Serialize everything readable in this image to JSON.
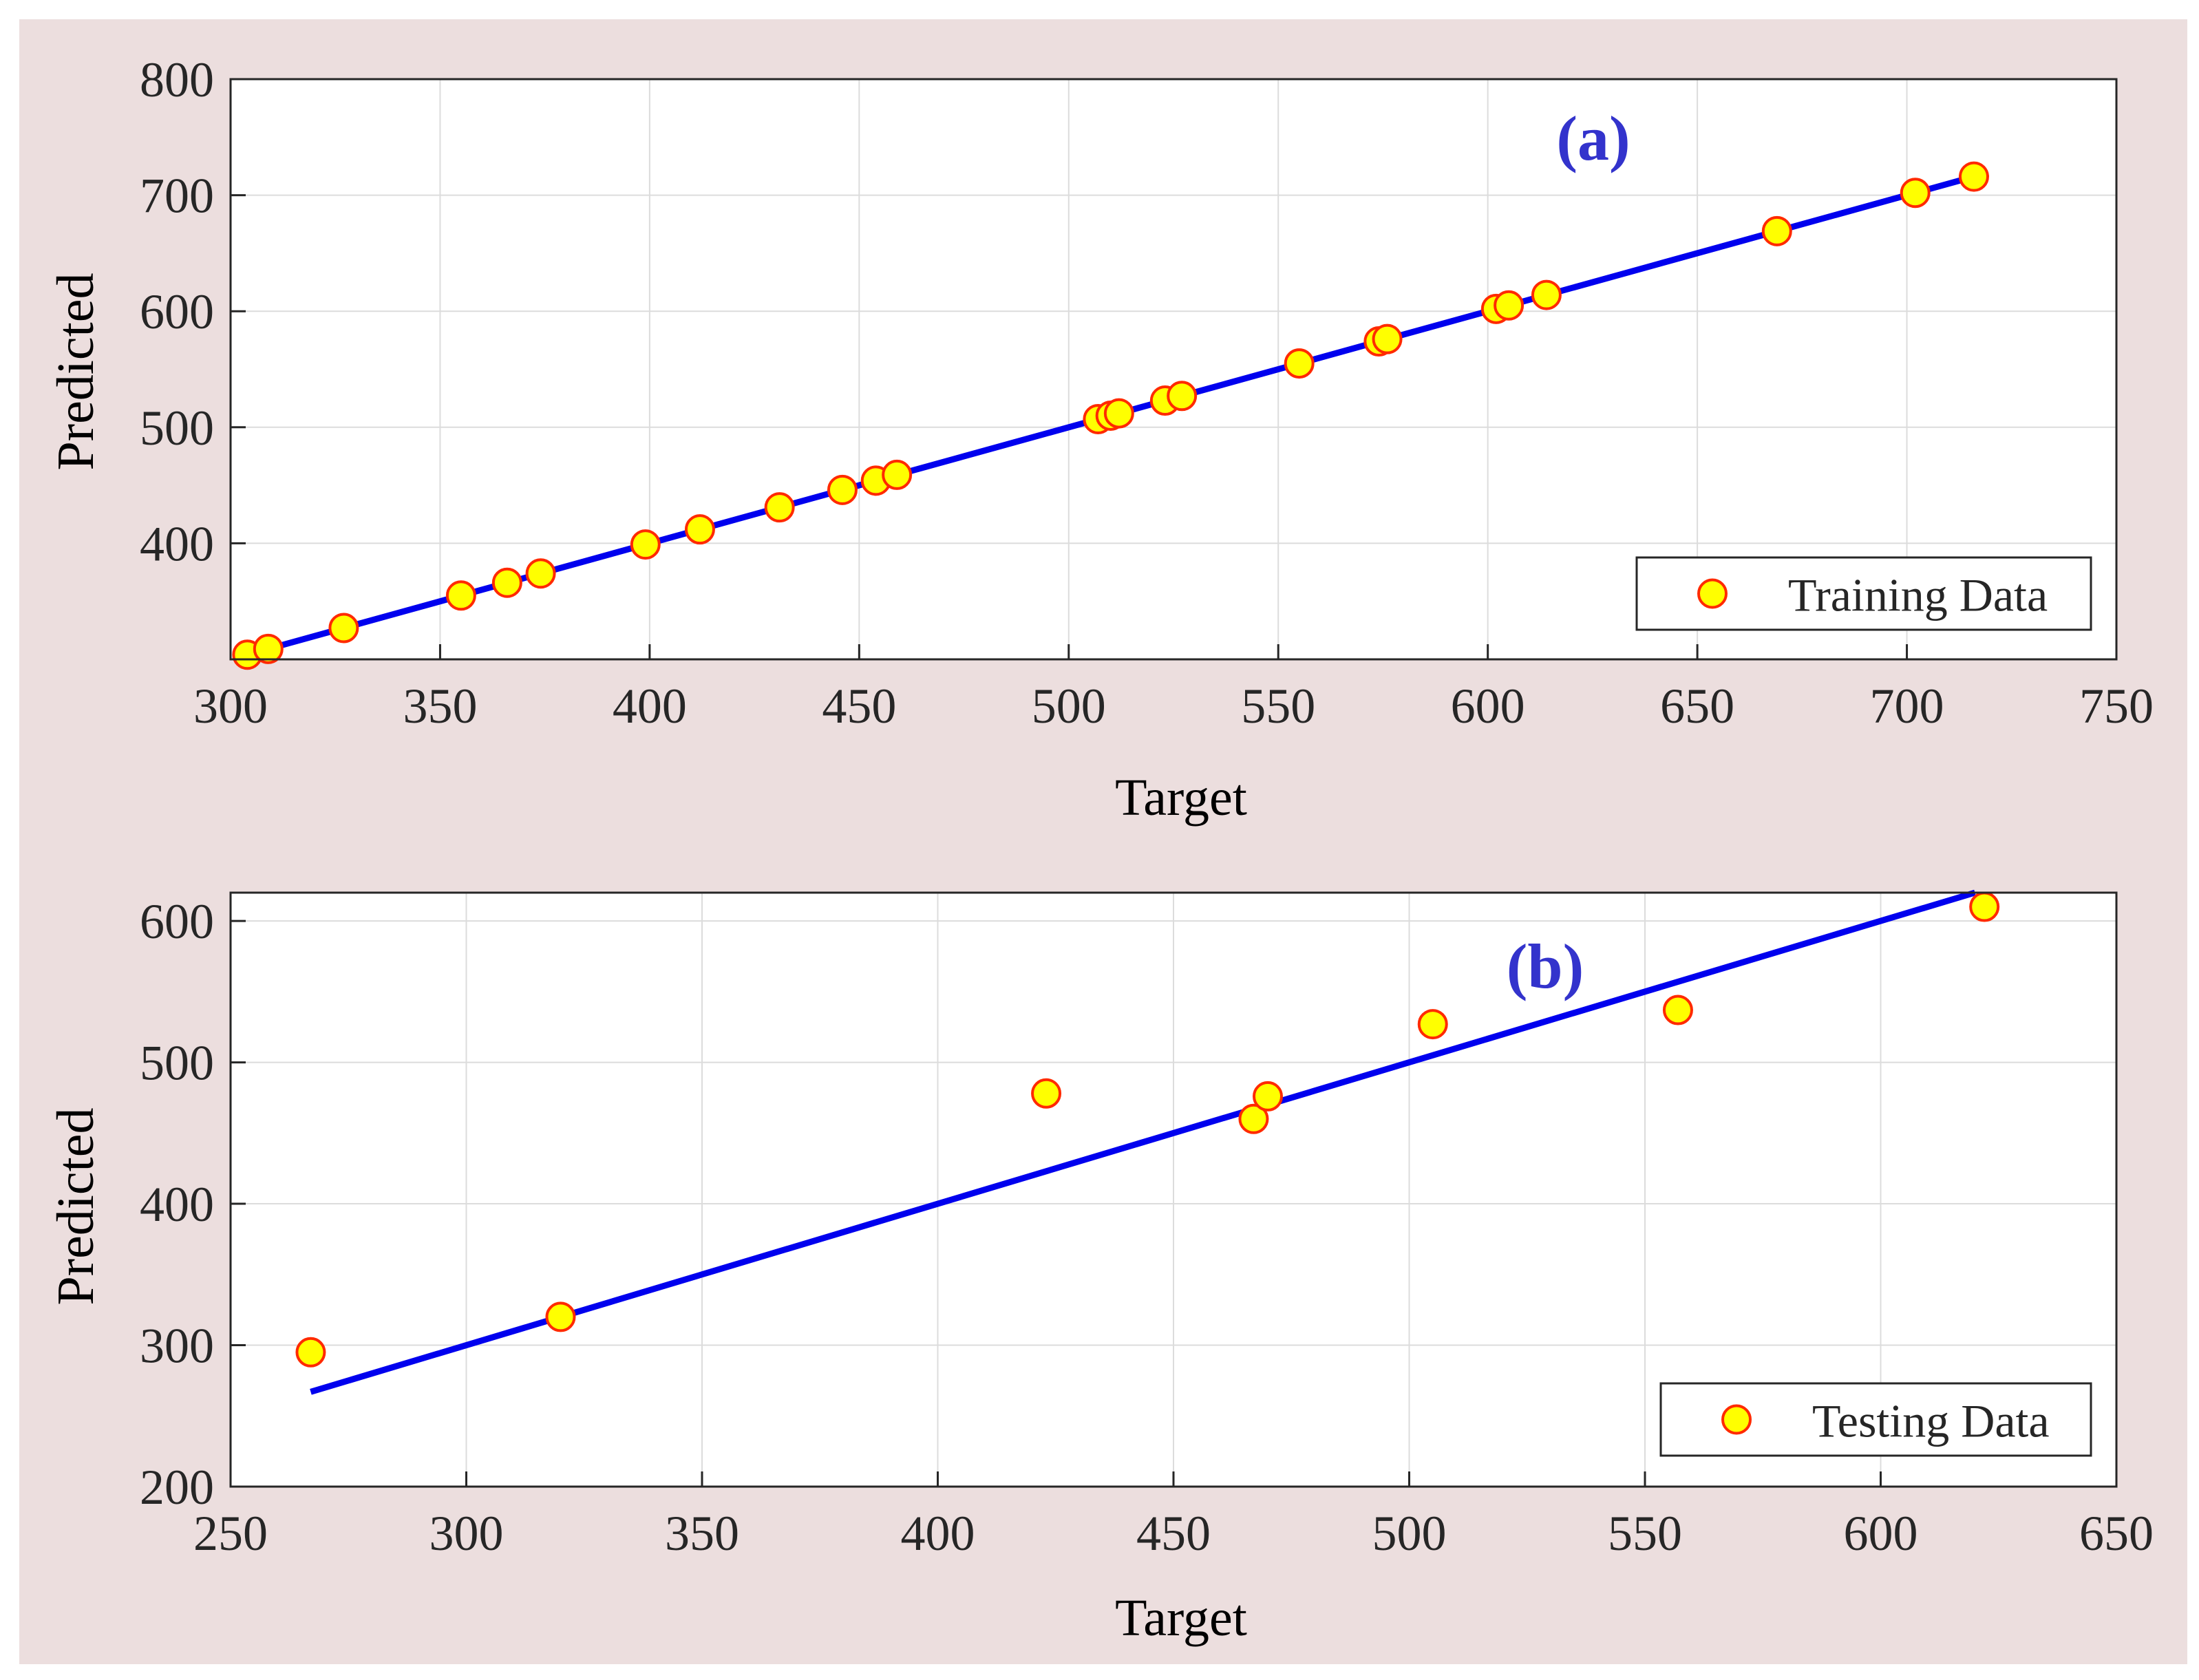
{
  "colors": {
    "figure_background": "#ecdede",
    "axes_background": "#ffffff",
    "fit_line": "#0000ee",
    "marker_fill": "#ffff00",
    "marker_edge": "#ff2a00",
    "panel_label": "#3333cc",
    "grid": "#dcdcdc",
    "text": "#262626"
  },
  "chart_data": [
    {
      "type": "scatter",
      "panel_label": "(a)",
      "xlabel": "Target",
      "ylabel": "Predicted",
      "xlim": [
        300,
        750
      ],
      "ylim": [
        300,
        800
      ],
      "xticks": [
        "300",
        "350",
        "400",
        "450",
        "500",
        "550",
        "600",
        "650",
        "700",
        "750"
      ],
      "yticks": [
        "400",
        "500",
        "600",
        "700",
        "800"
      ],
      "grid": true,
      "legend": {
        "label": "Training Data",
        "position": "bottom-right"
      },
      "series": [
        {
          "name": "Training Data",
          "x": [
            304,
            309,
            327,
            355,
            366,
            374,
            399,
            412,
            431,
            446,
            454,
            459,
            507,
            510,
            512,
            523,
            527,
            555,
            574,
            576,
            602,
            605,
            614,
            669,
            702,
            716
          ],
          "y": [
            304,
            309,
            327,
            355,
            366,
            374,
            399,
            412,
            431,
            446,
            454,
            459,
            507,
            510,
            512,
            523,
            527,
            555,
            574,
            576,
            602,
            605,
            614,
            669,
            702,
            716
          ]
        }
      ],
      "fit_line": {
        "x": [
          304,
          716
        ],
        "y": [
          304,
          716
        ]
      }
    },
    {
      "type": "scatter",
      "panel_label": "(b)",
      "xlabel": "Target",
      "ylabel": "Predicted",
      "xlim": [
        250,
        650
      ],
      "ylim": [
        200,
        620
      ],
      "xticks": [
        "250",
        "300",
        "350",
        "400",
        "450",
        "500",
        "550",
        "600",
        "650"
      ],
      "yticks": [
        "200",
        "300",
        "400",
        "500",
        "600"
      ],
      "grid": true,
      "legend": {
        "label": "Testing Data",
        "position": "bottom-right"
      },
      "series": [
        {
          "name": "Testing Data",
          "x": [
            267,
            320,
            423,
            467,
            470,
            505,
            557,
            622
          ],
          "y": [
            295,
            320,
            478,
            460,
            476,
            527,
            537,
            610
          ]
        }
      ],
      "fit_line": {
        "x": [
          267,
          620
        ],
        "y": [
          267,
          620
        ]
      }
    }
  ]
}
